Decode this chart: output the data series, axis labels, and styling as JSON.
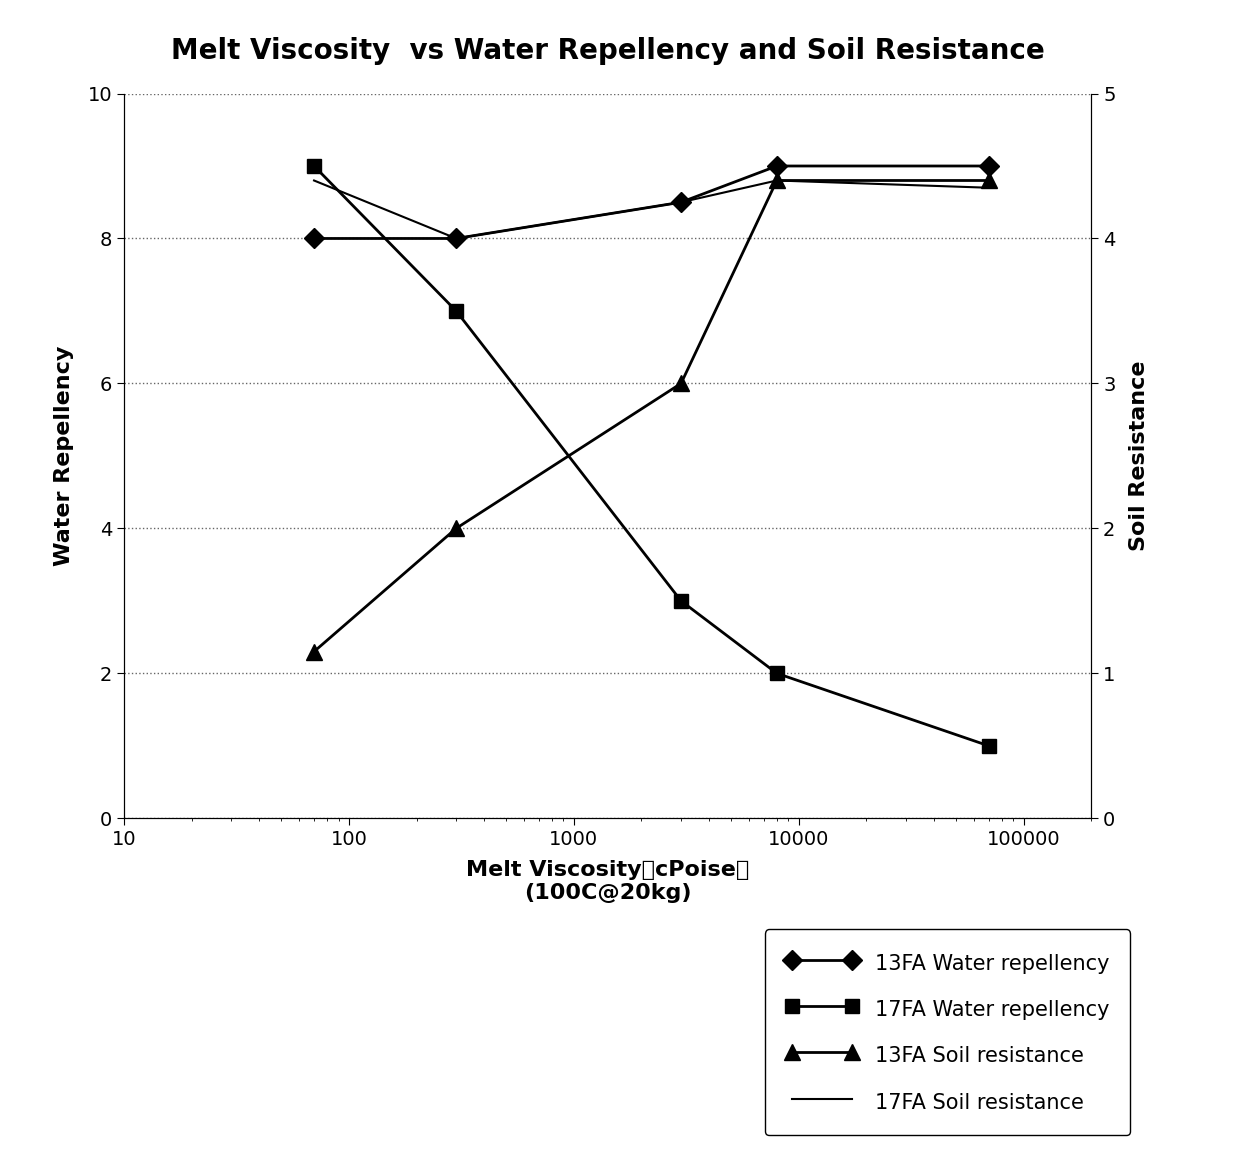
{
  "title": "Melt Viscosity  vs Water Repellency and Soil Resistance",
  "xlabel_line1": "Melt Viscosity（cPoise）",
  "xlabel_line2": "(100C@20kg)",
  "ylabel_left": "Water Repellency",
  "ylabel_right": "Soil Resistance",
  "x_data": [
    70,
    300,
    3000,
    8000,
    70000
  ],
  "y_13fa_water": [
    8.0,
    8.0,
    8.5,
    9.0,
    9.0
  ],
  "y_17fa_water": [
    9.0,
    7.0,
    3.0,
    2.0,
    1.0
  ],
  "y_13fa_soil": [
    2.3,
    4.0,
    6.0,
    8.8,
    8.8
  ],
  "y_17fa_soil": [
    8.8,
    8.0,
    8.5,
    8.8,
    8.7
  ],
  "ylim_left": [
    0,
    10
  ],
  "ylim_right": [
    0,
    5
  ],
  "xlim": [
    10,
    200000
  ],
  "yticks_left": [
    0,
    2,
    4,
    6,
    8,
    10
  ],
  "yticks_right": [
    0,
    1,
    2,
    3,
    4,
    5
  ],
  "xticks": [
    10,
    100,
    1000,
    10000,
    100000
  ],
  "xtick_labels": [
    "10",
    "100",
    "1000",
    "10000",
    "100000"
  ],
  "legend_labels": [
    "13FA Water repellency",
    "17FA Water repellency",
    "13FA Soil resistance",
    "17FA Soil resistance"
  ],
  "background_color": "#ffffff",
  "line_color": "#000000",
  "title_fontsize": 20,
  "label_fontsize": 16,
  "tick_fontsize": 14,
  "legend_fontsize": 15
}
